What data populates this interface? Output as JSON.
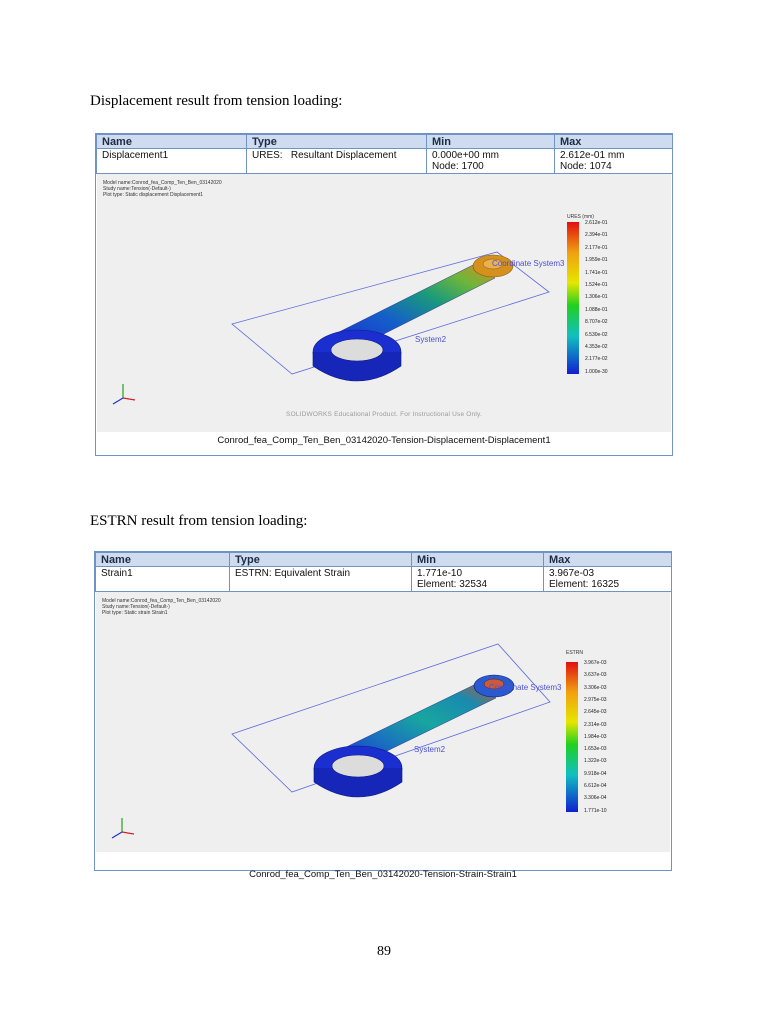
{
  "captions": {
    "displacement": "Displacement result from tension loading:",
    "strain": "ESTRN result from tension loading:"
  },
  "table_headers": {
    "name": "Name",
    "type": "Type",
    "min": "Min",
    "max": "Max"
  },
  "figure1": {
    "name": "Displacement1",
    "type": "URES:   Resultant Displacement",
    "min_value": "0.000e+00 mm",
    "min_loc": "Node: 1700",
    "max_value": "2.612e-01 mm",
    "max_loc": "Node: 1074",
    "meta": [
      "Model name:Conrod_fea_Comp_Ten_Ben_03142020",
      "Study name:Tension(-Default-)",
      "Plot type: Static displacement Displacement1"
    ],
    "legend_title": "URES (mm)",
    "legend": [
      "2.612e-01",
      "2.394e-01",
      "2.177e-01",
      "1.959e-01",
      "1.741e-01",
      "1.524e-01",
      "1.306e-01",
      "1.088e-01",
      "8.707e-02",
      "6.530e-02",
      "4.353e-02",
      "2.177e-02",
      "1.000e-30"
    ],
    "coord_label": "Coordinate System3",
    "axis_label": "System2",
    "watermark": "SOLIDWORKS Educational Product. For Instructional Use Only.",
    "footer": "Conrod_fea_Comp_Ten_Ben_03142020-Tension-Displacement-Displacement1"
  },
  "figure2": {
    "name": "Strain1",
    "type": "ESTRN: Equivalent Strain",
    "min_value": "1.771e-10",
    "min_loc": "Element: 32534",
    "max_value": "3.967e-03",
    "max_loc": "Element: 16325",
    "meta": [
      "Model name:Conrod_fea_Comp_Ten_Ben_03142020",
      "Study name:Tension(-Default-)",
      "Plot type: Static strain Strain1"
    ],
    "legend_title": "ESTRN",
    "legend": [
      "3.967e-03",
      "3.637e-03",
      "3.306e-03",
      "2.975e-03",
      "2.645e-03",
      "2.314e-03",
      "1.984e-03",
      "1.653e-03",
      "1.322e-03",
      "9.918e-04",
      "6.612e-04",
      "3.306e-04",
      "1.771e-10"
    ],
    "coord_label": "Coordinate System3",
    "axis_label": "System2",
    "footer": "Conrod_fea_Comp_Ten_Ben_03142020-Tension-Strain-Strain1"
  },
  "page_number": "89",
  "colors": {
    "border": "#6f93c6",
    "header_bg": "#cfdcf0",
    "plot_bg": "#efefef"
  }
}
